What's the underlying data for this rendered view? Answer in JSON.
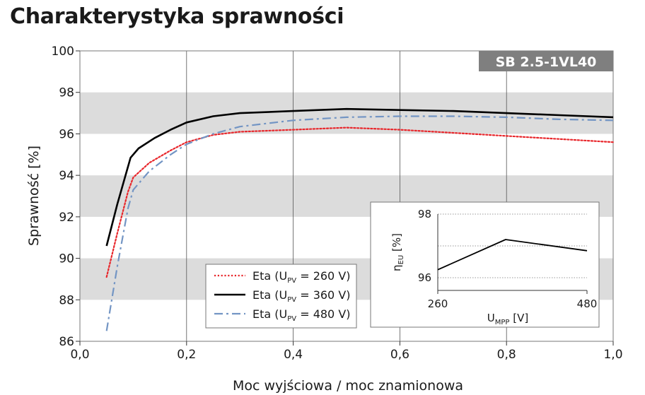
{
  "title": "Charakterystyka sprawności",
  "chart_data": [
    {
      "type": "line",
      "badge": "SB 2.5-1VL40",
      "xlabel": "Moc wyjściowa / moc znamionowa",
      "ylabel": "Sprawność [%]",
      "xlim": [
        0.0,
        1.0
      ],
      "ylim": [
        86,
        100
      ],
      "xticks": [
        "0,0",
        "0,2",
        "0,4",
        "0,6",
        "0,8",
        "1,0"
      ],
      "yticks": [
        "86",
        "88",
        "90",
        "92",
        "94",
        "96",
        "98",
        "100"
      ],
      "grid": "vertical lines at x ticks, alternating grey bands on y",
      "legend_position": "bottom-left",
      "series": [
        {
          "name": "Eta (U_PV = 260 V)",
          "legend_prefix": "Eta (U",
          "legend_sub": "PV",
          "legend_suffix": " = 260 V)",
          "color": "#e8262b",
          "style": "dotted",
          "x": [
            0.05,
            0.07,
            0.09,
            0.1,
            0.13,
            0.17,
            0.2,
            0.25,
            0.3,
            0.4,
            0.5,
            0.6,
            0.7,
            0.8,
            0.9,
            1.0
          ],
          "y": [
            89.1,
            91.2,
            93.2,
            93.9,
            94.6,
            95.2,
            95.6,
            95.95,
            96.1,
            96.2,
            96.3,
            96.2,
            96.05,
            95.9,
            95.75,
            95.6
          ]
        },
        {
          "name": "Eta (U_PV = 360 V)",
          "legend_prefix": "Eta (U",
          "legend_sub": "PV",
          "legend_suffix": " = 360 V)",
          "color": "#000000",
          "style": "solid",
          "x": [
            0.05,
            0.07,
            0.095,
            0.11,
            0.14,
            0.17,
            0.2,
            0.25,
            0.3,
            0.4,
            0.5,
            0.6,
            0.7,
            0.8,
            0.9,
            1.0
          ],
          "y": [
            90.6,
            92.6,
            94.85,
            95.3,
            95.8,
            96.2,
            96.55,
            96.85,
            97.0,
            97.1,
            97.2,
            97.15,
            97.1,
            97.0,
            96.9,
            96.8
          ]
        },
        {
          "name": "Eta (U_PV = 480 V)",
          "legend_prefix": "Eta (U",
          "legend_sub": "PV",
          "legend_suffix": " = 480 V)",
          "color": "#7395c4",
          "style": "dashdot",
          "x": [
            0.05,
            0.07,
            0.09,
            0.1,
            0.13,
            0.17,
            0.2,
            0.25,
            0.3,
            0.4,
            0.5,
            0.6,
            0.7,
            0.8,
            0.9,
            1.0
          ],
          "y": [
            86.5,
            89.6,
            92.4,
            93.3,
            94.2,
            95.0,
            95.5,
            96.0,
            96.35,
            96.65,
            96.8,
            96.85,
            96.85,
            96.8,
            96.7,
            96.65
          ]
        }
      ]
    },
    {
      "type": "line",
      "ylabel_main": "η",
      "ylabel_sub": "EU",
      "ylabel_suffix": " [%]",
      "xlabel_main": "U",
      "xlabel_sub": "MPP",
      "xlabel_suffix": " [V]",
      "xlim": [
        260,
        480
      ],
      "ylim": [
        95.6,
        98
      ],
      "xticks": [
        "260",
        "480"
      ],
      "yticks": [
        "96",
        "98"
      ],
      "series": [
        {
          "color": "#000000",
          "x": [
            260,
            360,
            480
          ],
          "y": [
            96.25,
            97.2,
            96.85
          ]
        }
      ]
    }
  ]
}
